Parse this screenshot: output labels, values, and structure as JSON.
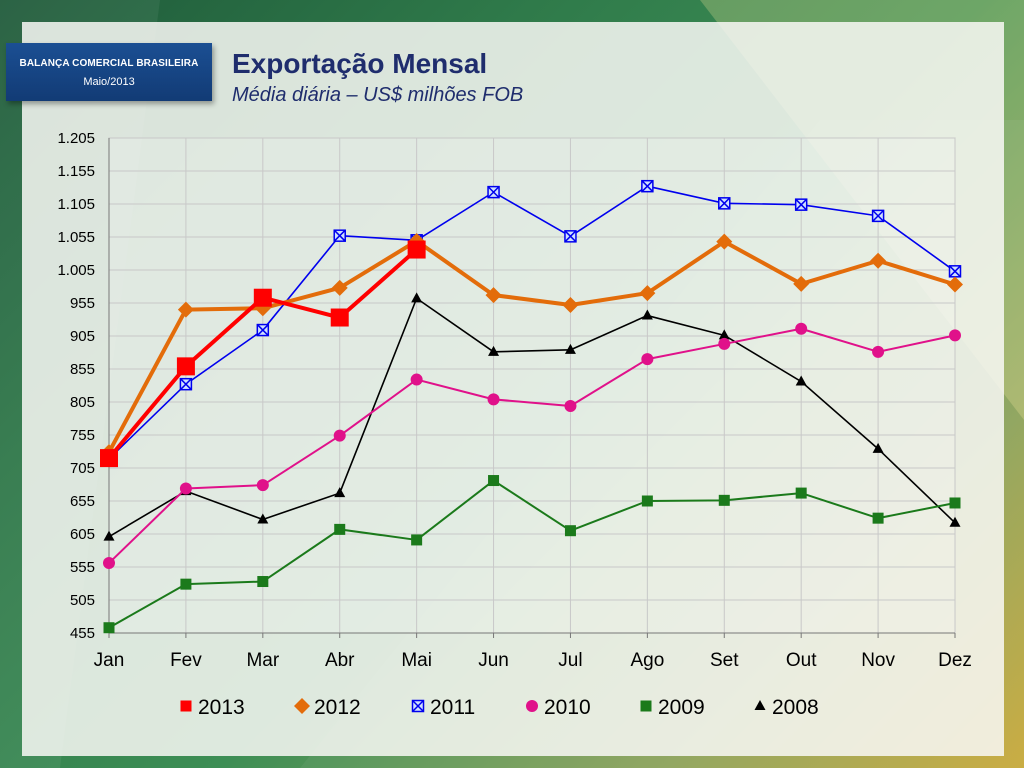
{
  "header": {
    "badge_org": "BALANÇA COMERCIAL BRASILEIRA",
    "badge_period": "Maio/2013",
    "title": "Exportação Mensal",
    "subtitle": "Média diária – US$ milhões FOB"
  },
  "chart_data": {
    "type": "line",
    "title": "Exportação Mensal",
    "subtitle": "Média diária – US$ milhões FOB",
    "xlabel": "",
    "ylabel": "",
    "categories": [
      "Jan",
      "Fev",
      "Mar",
      "Abr",
      "Mai",
      "Jun",
      "Jul",
      "Ago",
      "Set",
      "Out",
      "Nov",
      "Dez"
    ],
    "ylim": [
      455,
      1205
    ],
    "yticks": [
      455,
      505,
      555,
      605,
      655,
      705,
      755,
      805,
      855,
      905,
      955,
      1005,
      1055,
      1105,
      1155,
      1205
    ],
    "ytick_labels": [
      "455",
      "505",
      "555",
      "605",
      "655",
      "705",
      "755",
      "805",
      "855",
      "905",
      "955",
      "1.005",
      "1.055",
      "1.105",
      "1.155",
      "1.205"
    ],
    "grid": true,
    "legend_position": "bottom",
    "series": [
      {
        "name": "2013",
        "color": "#ff0000",
        "marker": "square-large",
        "width": 4,
        "values": [
          720,
          859,
          963,
          933,
          1036,
          null,
          null,
          null,
          null,
          null,
          null,
          null
        ]
      },
      {
        "name": "2012",
        "color": "#e36c0a",
        "marker": "diamond",
        "width": 4,
        "values": [
          729,
          945,
          947,
          978,
          1049,
          967,
          952,
          970,
          1048,
          984,
          1019,
          983
        ]
      },
      {
        "name": "2011",
        "color": "#0000ee",
        "marker": "x-square",
        "width": 1.6,
        "values": [
          719,
          832,
          914,
          1057,
          1050,
          1123,
          1056,
          1132,
          1106,
          1104,
          1087,
          1003
        ]
      },
      {
        "name": "2010",
        "color": "#e0118a",
        "marker": "circle",
        "width": 2,
        "values": [
          561,
          674,
          679,
          754,
          839,
          809,
          799,
          870,
          893,
          916,
          881,
          906
        ]
      },
      {
        "name": "2009",
        "color": "#1b7a1b",
        "marker": "square",
        "width": 2,
        "values": [
          463,
          529,
          533,
          612,
          596,
          686,
          610,
          655,
          656,
          667,
          629,
          652
        ]
      },
      {
        "name": "2008",
        "color": "#000000",
        "marker": "triangle",
        "width": 1.6,
        "values": [
          601,
          670,
          627,
          667,
          962,
          881,
          884,
          936,
          906,
          836,
          734,
          622
        ]
      }
    ]
  }
}
